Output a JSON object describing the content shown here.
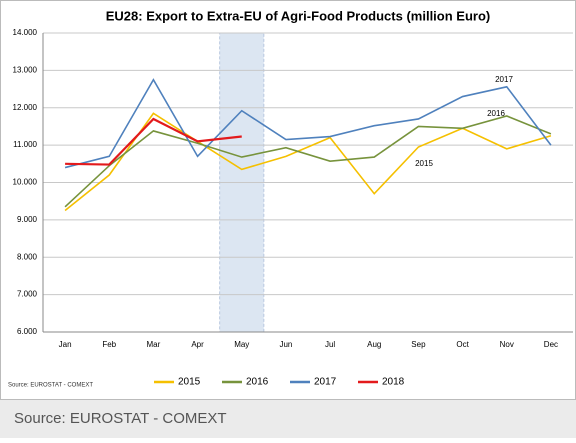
{
  "chart_data": {
    "type": "line",
    "title": "EU28: Export to Extra-EU of Agri-Food Products (million Euro)",
    "categories": [
      "Jan",
      "Feb",
      "Mar",
      "Apr",
      "May",
      "Jun",
      "Jul",
      "Aug",
      "Sep",
      "Oct",
      "Nov",
      "Dec"
    ],
    "series": [
      {
        "name": "2015",
        "color": "#f5c000",
        "values": [
          9250,
          10200,
          11850,
          11100,
          10350,
          10700,
          11200,
          9700,
          10950,
          11450,
          10900,
          11250
        ]
      },
      {
        "name": "2016",
        "color": "#77933c",
        "values": [
          9350,
          10450,
          11380,
          11050,
          10680,
          10930,
          10570,
          10680,
          11500,
          11450,
          11780,
          11300
        ]
      },
      {
        "name": "2017",
        "color": "#4f81bd",
        "values": [
          10400,
          10700,
          12750,
          10700,
          11920,
          11150,
          11230,
          11520,
          11700,
          12300,
          12560,
          11000
        ]
      },
      {
        "name": "2018",
        "color": "#e31a1c",
        "values": [
          10500,
          10480,
          11700,
          11100,
          11230,
          null,
          null,
          null,
          null,
          null,
          null,
          null
        ]
      }
    ],
    "ylim": [
      6000,
      14000
    ],
    "yticks": [
      {
        "value": 6000,
        "label": "6.000"
      },
      {
        "value": 7000,
        "label": "7.000"
      },
      {
        "value": 8000,
        "label": "8.000"
      },
      {
        "value": 9000,
        "label": "9.000"
      },
      {
        "value": 10000,
        "label": "10.000"
      },
      {
        "value": 11000,
        "label": "11.000"
      },
      {
        "value": 12000,
        "label": "12.000"
      },
      {
        "value": 13000,
        "label": "13.000"
      },
      {
        "value": 14000,
        "label": "14.000"
      }
    ],
    "grid": true,
    "highlight": "May",
    "annotations": [
      "2017",
      "2016",
      "2015"
    ],
    "legend": "bottom",
    "source": "Source: EUROSTAT - COMEXT"
  },
  "caption": "Source: EUROSTAT - COMEXT"
}
